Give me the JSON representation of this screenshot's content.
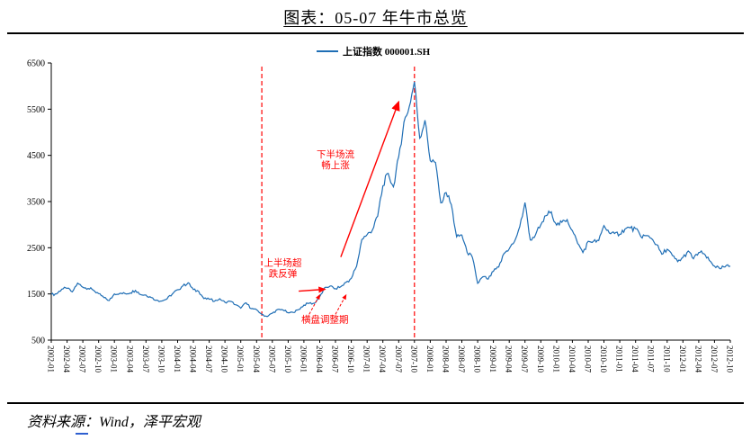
{
  "page": {
    "title": "图表：05-07 年牛市总览",
    "source": "资料来源：Wind，泽平宏观"
  },
  "chart_data": {
    "type": "line",
    "title": "图表：05-07 年牛市总览",
    "legend": "上证指数 000001.SH",
    "line_color": "#1f6eb5",
    "annotation_color": "#ff0000",
    "ylim": [
      500,
      6500
    ],
    "yticks": [
      6500,
      5500,
      4500,
      3500,
      2500,
      1500,
      500
    ],
    "x_label_every": 3,
    "x": [
      "2002-01",
      "2002-02",
      "2002-03",
      "2002-04",
      "2002-05",
      "2002-06",
      "2002-07",
      "2002-08",
      "2002-09",
      "2002-10",
      "2002-11",
      "2002-12",
      "2003-01",
      "2003-02",
      "2003-03",
      "2003-04",
      "2003-05",
      "2003-06",
      "2003-07",
      "2003-08",
      "2003-09",
      "2003-10",
      "2003-11",
      "2003-12",
      "2004-01",
      "2004-02",
      "2004-03",
      "2004-04",
      "2004-05",
      "2004-06",
      "2004-07",
      "2004-08",
      "2004-09",
      "2004-10",
      "2004-11",
      "2004-12",
      "2005-01",
      "2005-02",
      "2005-03",
      "2005-04",
      "2005-05",
      "2005-06",
      "2005-07",
      "2005-08",
      "2005-09",
      "2005-10",
      "2005-11",
      "2005-12",
      "2006-01",
      "2006-02",
      "2006-03",
      "2006-04",
      "2006-05",
      "2006-06",
      "2006-07",
      "2006-08",
      "2006-09",
      "2006-10",
      "2006-11",
      "2006-12",
      "2007-01",
      "2007-02",
      "2007-03",
      "2007-04",
      "2007-05",
      "2007-06",
      "2007-07",
      "2007-08",
      "2007-09",
      "2007-10",
      "2007-11",
      "2007-12",
      "2008-01",
      "2008-02",
      "2008-03",
      "2008-04",
      "2008-05",
      "2008-06",
      "2008-07",
      "2008-08",
      "2008-09",
      "2008-10",
      "2008-11",
      "2008-12",
      "2009-01",
      "2009-02",
      "2009-03",
      "2009-04",
      "2009-05",
      "2009-06",
      "2009-07",
      "2009-08",
      "2009-09",
      "2009-10",
      "2009-11",
      "2009-12",
      "2010-01",
      "2010-02",
      "2010-03",
      "2010-04",
      "2010-05",
      "2010-06",
      "2010-07",
      "2010-08",
      "2010-09",
      "2010-10",
      "2010-11",
      "2010-12",
      "2011-01",
      "2011-02",
      "2011-03",
      "2011-04",
      "2011-05",
      "2011-06",
      "2011-07",
      "2011-08",
      "2011-09",
      "2011-10",
      "2011-11",
      "2011-12",
      "2012-01",
      "2012-02",
      "2012-03",
      "2012-04",
      "2012-05",
      "2012-06",
      "2012-07",
      "2012-08",
      "2012-09",
      "2012-10"
    ],
    "values": [
      1491,
      1501,
      1603,
      1621,
      1546,
      1733,
      1646,
      1618,
      1581,
      1508,
      1421,
      1357,
      1499,
      1512,
      1510,
      1521,
      1576,
      1486,
      1476,
      1421,
      1367,
      1348,
      1397,
      1497,
      1590,
      1675,
      1741,
      1595,
      1555,
      1399,
      1386,
      1342,
      1396,
      1320,
      1340,
      1266,
      1191,
      1306,
      1181,
      1159,
      1060,
      1010,
      1083,
      1162,
      1155,
      1092,
      1099,
      1161,
      1258,
      1299,
      1298,
      1440,
      1641,
      1672,
      1612,
      1658,
      1752,
      1837,
      2099,
      2675,
      2786,
      2881,
      3183,
      3841,
      4109,
      3820,
      4471,
      5218,
      5552,
      6092,
      4872,
      5262,
      4383,
      4348,
      3473,
      3693,
      3433,
      2736,
      2776,
      2397,
      2294,
      1729,
      1871,
      1821,
      1991,
      2082,
      2373,
      2478,
      2633,
      2959,
      3478,
      2668,
      2779,
      2995,
      3195,
      3277,
      2989,
      3052,
      3109,
      2871,
      2592,
      2398,
      2638,
      2639,
      2656,
      2979,
      2820,
      2808,
      2790,
      2905,
      2928,
      2911,
      2743,
      2762,
      2701,
      2567,
      2359,
      2468,
      2333,
      2199,
      2292,
      2428,
      2262,
      2396,
      2372,
      2225,
      2103,
      2047,
      2086,
      2104
    ],
    "vlines": [
      "2005-05",
      "2007-10"
    ],
    "annotations": [
      {
        "name": "second-half-rally-label",
        "lines": [
          "下半场流",
          "畅上涨"
        ],
        "x": "2006-07",
        "value": 4400
      },
      {
        "name": "first-half-rebound-label",
        "lines": [
          "上半场超",
          "跌反弹"
        ],
        "x": "2005-09",
        "value": 2050
      },
      {
        "name": "consolidation-label",
        "lines": [
          "横盘调整期"
        ],
        "x": "2006-05",
        "value": 950
      }
    ],
    "arrows": [
      {
        "name": "rally-arrow",
        "from": {
          "x": "2006-08",
          "value": 2300
        },
        "to": {
          "x": "2007-07",
          "value": 5660
        }
      },
      {
        "name": "rebound-arrow",
        "from": {
          "x": "2005-12",
          "value": 1560
        },
        "to": {
          "x": "2006-05",
          "value": 1600
        }
      }
    ],
    "dashed_pointers": [
      {
        "name": "consolidation-pointer-left",
        "from": {
          "x": "2006-02",
          "value": 1060
        },
        "to": {
          "x": "2006-04",
          "value": 1480
        }
      },
      {
        "name": "consolidation-pointer-right",
        "from": {
          "x": "2006-07",
          "value": 1060
        },
        "to": {
          "x": "2006-09",
          "value": 1480
        }
      }
    ]
  }
}
